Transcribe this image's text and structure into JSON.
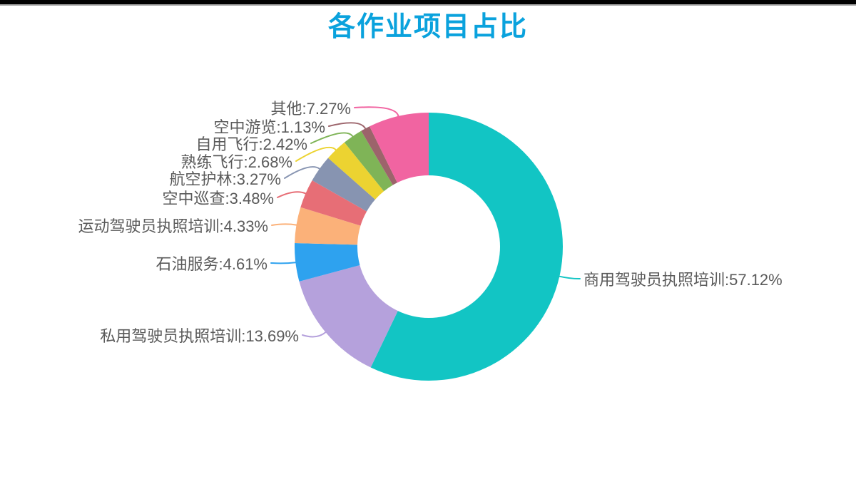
{
  "header": {
    "title": "各作业项目占比",
    "title_color": "#0aa2dd"
  },
  "page": {
    "background": "#ffffff",
    "top_bar_color": "#000000",
    "top_bar_edge_color": "#a8a8a8"
  },
  "chart_data": {
    "type": "pie",
    "title": "各作业项目占比",
    "donut": true,
    "start_angle": "top",
    "direction": "clockwise",
    "label_format": "{name}:{value}%",
    "label_text_color": "#5a5a5a",
    "series": [
      {
        "slug": "commercial-pilot-license-training",
        "name": "商用驾驶员执照培训",
        "value": 57.12,
        "color": "#12c5c4",
        "label": "商用驾驶员执照培训:57.12%",
        "label_side": "right"
      },
      {
        "slug": "private-pilot-license-training",
        "name": "私用驾驶员执照培训",
        "value": 13.69,
        "color": "#b5a1dc",
        "label": "私用驾驶员执照培训:13.69%",
        "label_side": "left"
      },
      {
        "slug": "oil-service",
        "name": "石油服务",
        "value": 4.61,
        "color": "#2ea2ef",
        "label": "石油服务:4.61%",
        "label_side": "left"
      },
      {
        "slug": "sport-pilot-license-training",
        "name": "运动驾驶员执照培训",
        "value": 4.33,
        "color": "#fbb179",
        "label": "运动驾驶员执照培训:4.33%",
        "label_side": "left"
      },
      {
        "slug": "aerial-patrol",
        "name": "空中巡查",
        "value": 3.48,
        "color": "#e76e76",
        "label": "空中巡查:3.48%",
        "label_side": "left"
      },
      {
        "slug": "aviation-forest-protection",
        "name": "航空护林",
        "value": 3.27,
        "color": "#8794b1",
        "label": "航空护林:3.27%",
        "label_side": "left"
      },
      {
        "slug": "proficiency-flight",
        "name": "熟练飞行",
        "value": 2.68,
        "color": "#ecd331",
        "label": "熟练飞行:2.68%",
        "label_side": "left"
      },
      {
        "slug": "private-use-flight",
        "name": "自用飞行",
        "value": 2.42,
        "color": "#7fb457",
        "label": "自用飞行:2.42%",
        "label_side": "left"
      },
      {
        "slug": "air-sightseeing",
        "name": "空中游览",
        "value": 1.13,
        "color": "#9c646b",
        "label": "空中游览:1.13%",
        "label_side": "left"
      },
      {
        "slug": "other",
        "name": "其他",
        "value": 7.27,
        "color": "#f164a1",
        "label": "其他:7.27%",
        "label_side": "left"
      }
    ]
  }
}
